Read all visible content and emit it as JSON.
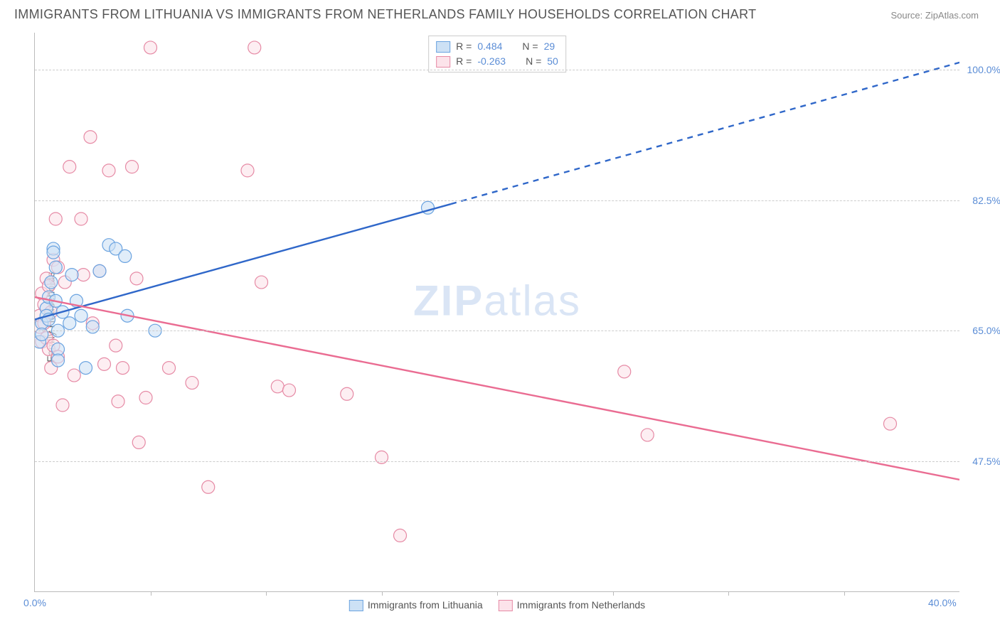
{
  "title": "IMMIGRANTS FROM LITHUANIA VS IMMIGRANTS FROM NETHERLANDS FAMILY HOUSEHOLDS CORRELATION CHART",
  "source_label": "Source: ZipAtlas.com",
  "ylabel": "Family Households",
  "watermark_a": "ZIP",
  "watermark_b": "atlas",
  "chart": {
    "type": "scatter",
    "xlim": [
      0,
      40
    ],
    "ylim": [
      30,
      105
    ],
    "x_ticks": [
      0,
      40
    ],
    "x_tick_labels": [
      "0.0%",
      "40.0%"
    ],
    "x_minor_ticks": [
      5,
      10,
      15,
      20,
      25,
      30,
      35
    ],
    "y_ticks": [
      47.5,
      65.0,
      82.5,
      100.0
    ],
    "y_tick_labels": [
      "47.5%",
      "65.0%",
      "82.5%",
      "100.0%"
    ],
    "background_color": "#ffffff",
    "grid_color": "#cccccc",
    "axis_color": "#bbbbbb",
    "tick_label_color": "#5b8dd6",
    "marker_radius": 9,
    "marker_stroke_width": 1.2,
    "series": [
      {
        "name": "Immigrants from Lithuania",
        "fill": "#cde1f5",
        "stroke": "#6aa3e0",
        "line_stroke": "#2f67c9",
        "line_width": 2.4,
        "R": 0.484,
        "N": 29,
        "trend": {
          "x1": 0,
          "y1": 66.5,
          "x2": 18,
          "y2": 82.0,
          "extrap_x2": 40,
          "extrap_y2": 101.0
        },
        "points": [
          [
            0.2,
            63.5
          ],
          [
            0.3,
            66.0
          ],
          [
            0.3,
            64.5
          ],
          [
            0.5,
            68.0
          ],
          [
            0.5,
            67.0
          ],
          [
            0.6,
            69.5
          ],
          [
            0.6,
            66.5
          ],
          [
            0.7,
            71.5
          ],
          [
            0.8,
            76.0
          ],
          [
            0.8,
            75.5
          ],
          [
            0.9,
            73.5
          ],
          [
            0.9,
            69.0
          ],
          [
            1.0,
            65.0
          ],
          [
            1.0,
            62.5
          ],
          [
            1.0,
            61.0
          ],
          [
            1.2,
            67.5
          ],
          [
            1.5,
            66.0
          ],
          [
            1.6,
            72.5
          ],
          [
            1.8,
            69.0
          ],
          [
            2.0,
            67.0
          ],
          [
            2.2,
            60.0
          ],
          [
            2.5,
            65.5
          ],
          [
            2.8,
            73.0
          ],
          [
            3.2,
            76.5
          ],
          [
            3.5,
            76.0
          ],
          [
            3.9,
            75.0
          ],
          [
            4.0,
            67.0
          ],
          [
            5.2,
            65.0
          ],
          [
            17.0,
            81.5
          ]
        ]
      },
      {
        "name": "Immigrants from Netherlands",
        "fill": "#fce3ea",
        "stroke": "#e68aa5",
        "line_stroke": "#ea6c92",
        "line_width": 2.4,
        "R": -0.263,
        "N": 50,
        "trend": {
          "x1": 0,
          "y1": 69.5,
          "x2": 40,
          "y2": 45.0,
          "extrap_x2": 40,
          "extrap_y2": 45.0
        },
        "points": [
          [
            0.2,
            67.0
          ],
          [
            0.2,
            65.5
          ],
          [
            0.3,
            70.0
          ],
          [
            0.3,
            63.5
          ],
          [
            0.4,
            68.5
          ],
          [
            0.4,
            66.0
          ],
          [
            0.5,
            72.0
          ],
          [
            0.5,
            64.0
          ],
          [
            0.6,
            71.0
          ],
          [
            0.6,
            62.5
          ],
          [
            0.7,
            67.5
          ],
          [
            0.7,
            60.0
          ],
          [
            0.8,
            74.5
          ],
          [
            0.8,
            63.0
          ],
          [
            0.9,
            80.0
          ],
          [
            1.0,
            73.5
          ],
          [
            1.0,
            61.5
          ],
          [
            1.2,
            55.0
          ],
          [
            1.5,
            87.0
          ],
          [
            1.7,
            59.0
          ],
          [
            2.0,
            80.0
          ],
          [
            2.1,
            72.5
          ],
          [
            2.4,
            91.0
          ],
          [
            2.5,
            66.0
          ],
          [
            2.8,
            73.0
          ],
          [
            3.0,
            60.5
          ],
          [
            3.2,
            86.5
          ],
          [
            3.5,
            63.0
          ],
          [
            3.6,
            55.5
          ],
          [
            3.8,
            60.0
          ],
          [
            4.2,
            87.0
          ],
          [
            4.4,
            72.0
          ],
          [
            4.5,
            50.0
          ],
          [
            4.8,
            56.0
          ],
          [
            5.0,
            103.0
          ],
          [
            5.8,
            60.0
          ],
          [
            6.8,
            58.0
          ],
          [
            7.5,
            44.0
          ],
          [
            9.2,
            86.5
          ],
          [
            9.5,
            103.0
          ],
          [
            9.8,
            71.5
          ],
          [
            10.5,
            57.5
          ],
          [
            11.0,
            57.0
          ],
          [
            13.5,
            56.5
          ],
          [
            15.0,
            48.0
          ],
          [
            15.8,
            37.5
          ],
          [
            25.5,
            59.5
          ],
          [
            26.5,
            51.0
          ],
          [
            37.0,
            52.5
          ],
          [
            1.3,
            71.5
          ]
        ]
      }
    ]
  },
  "legend_top": {
    "rows": [
      {
        "swatch_fill": "#cde1f5",
        "swatch_stroke": "#6aa3e0",
        "labels": [
          "R =",
          "0.484",
          "N =",
          "29"
        ]
      },
      {
        "swatch_fill": "#fce3ea",
        "swatch_stroke": "#e68aa5",
        "labels": [
          "R =",
          "-0.263",
          "N =",
          "50"
        ]
      }
    ]
  },
  "legend_bottom": {
    "items": [
      {
        "swatch_fill": "#cde1f5",
        "swatch_stroke": "#6aa3e0",
        "label": "Immigrants from Lithuania"
      },
      {
        "swatch_fill": "#fce3ea",
        "swatch_stroke": "#e68aa5",
        "label": "Immigrants from Netherlands"
      }
    ]
  }
}
